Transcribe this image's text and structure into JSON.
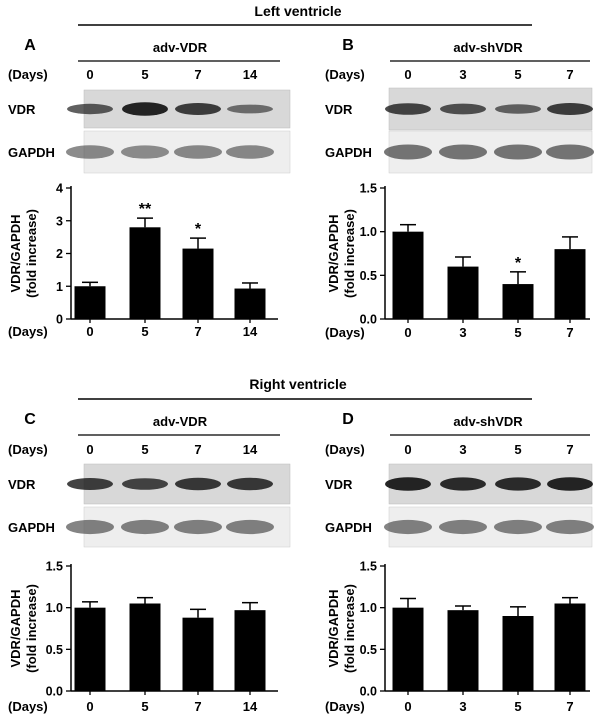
{
  "sections": {
    "top": "Left ventricle",
    "bottom": "Right ventricle"
  },
  "row_labels": {
    "days": "(Days)",
    "vdr": "VDR",
    "gapdh": "GAPDH"
  },
  "panels": {
    "A": {
      "letter": "A",
      "construct": "adv-VDR",
      "days": [
        "0",
        "5",
        "7",
        "14"
      ]
    },
    "B": {
      "letter": "B",
      "construct": "adv-shVDR",
      "days": [
        "0",
        "3",
        "5",
        "7"
      ]
    },
    "C": {
      "letter": "C",
      "construct": "adv-VDR",
      "days": [
        "0",
        "5",
        "7",
        "14"
      ]
    },
    "D": {
      "letter": "D",
      "construct": "adv-shVDR",
      "days": [
        "0",
        "3",
        "5",
        "7"
      ]
    }
  },
  "chart_data": [
    {
      "id": "A",
      "type": "bar",
      "categories": [
        "0",
        "5",
        "7",
        "14"
      ],
      "values": [
        1.0,
        2.8,
        2.15,
        0.93
      ],
      "errors": [
        0.12,
        0.28,
        0.32,
        0.17
      ],
      "significance": [
        "",
        "**",
        "*",
        ""
      ],
      "ylim": [
        0,
        4
      ],
      "yticks": [
        "0",
        "1",
        "2",
        "3",
        "4"
      ],
      "ytick_values": [
        0,
        1,
        2,
        3,
        4
      ],
      "ylabel": [
        "VDR/GAPDH",
        "(fold increase)"
      ],
      "xlabel": "(Days)"
    },
    {
      "id": "B",
      "type": "bar",
      "categories": [
        "0",
        "3",
        "5",
        "7"
      ],
      "values": [
        1.0,
        0.6,
        0.4,
        0.8
      ],
      "errors": [
        0.08,
        0.11,
        0.14,
        0.14
      ],
      "significance": [
        "",
        "",
        "*",
        ""
      ],
      "ylim": [
        0,
        1.5
      ],
      "yticks": [
        "0.0",
        "0.5",
        "1.0",
        "1.5"
      ],
      "ytick_values": [
        0,
        0.5,
        1.0,
        1.5
      ],
      "ylabel": [
        "VDR/GAPDH",
        "(fold increase)"
      ],
      "xlabel": "(Days)"
    },
    {
      "id": "C",
      "type": "bar",
      "categories": [
        "0",
        "5",
        "7",
        "14"
      ],
      "values": [
        1.0,
        1.05,
        0.88,
        0.97
      ],
      "errors": [
        0.07,
        0.07,
        0.1,
        0.09
      ],
      "significance": [
        "",
        "",
        "",
        ""
      ],
      "ylim": [
        0,
        1.5
      ],
      "yticks": [
        "0.0",
        "0.5",
        "1.0",
        "1.5"
      ],
      "ytick_values": [
        0,
        0.5,
        1.0,
        1.5
      ],
      "ylabel": [
        "VDR/GAPDH",
        "(fold increase)"
      ],
      "xlabel": "(Days)"
    },
    {
      "id": "D",
      "type": "bar",
      "categories": [
        "0",
        "3",
        "5",
        "7"
      ],
      "values": [
        1.0,
        0.97,
        0.9,
        1.05
      ],
      "errors": [
        0.11,
        0.05,
        0.11,
        0.07
      ],
      "significance": [
        "",
        "",
        "",
        ""
      ],
      "ylim": [
        0,
        1.5
      ],
      "yticks": [
        "0.0",
        "0.5",
        "1.0",
        "1.5"
      ],
      "ytick_values": [
        0,
        0.5,
        1.0,
        1.5
      ],
      "ylabel": [
        "VDR/GAPDH",
        "(fold increase)"
      ],
      "xlabel": "(Days)"
    }
  ],
  "blots": {
    "A": {
      "vdr": [
        0.55,
        0.95,
        0.75,
        0.35
      ],
      "gapdh": [
        0.6,
        0.55,
        0.6,
        0.6
      ]
    },
    "B": {
      "vdr": [
        0.7,
        0.6,
        0.45,
        0.75
      ],
      "gapdh": [
        0.85,
        0.85,
        0.85,
        0.85
      ]
    },
    "C": {
      "vdr": [
        0.75,
        0.7,
        0.8,
        0.8
      ],
      "gapdh": [
        0.7,
        0.7,
        0.7,
        0.7
      ]
    },
    "D": {
      "vdr": [
        0.95,
        0.9,
        0.9,
        0.95
      ],
      "gapdh": [
        0.7,
        0.7,
        0.7,
        0.7
      ]
    }
  }
}
